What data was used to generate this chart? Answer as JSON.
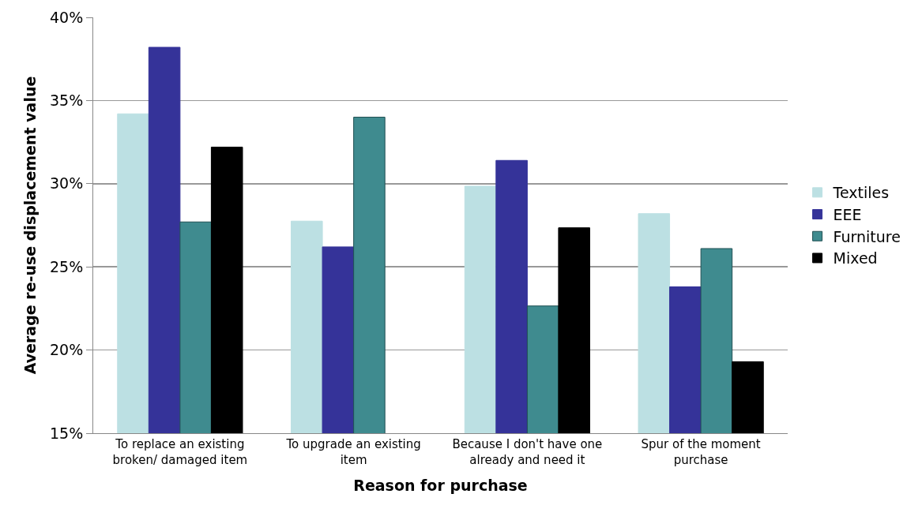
{
  "chart_data": {
    "type": "bar",
    "xlabel": "Reason for purchase",
    "ylabel": "Average re-use displacement value",
    "categories": [
      "To replace an existing broken/ damaged item",
      "To upgrade an existing item",
      "Because I don't have one already and need it",
      "Spur of the moment purchase"
    ],
    "series": [
      {
        "name": "Textiles",
        "color": "#bce0e3",
        "values": [
          34.2,
          27.75,
          29.85,
          28.2
        ]
      },
      {
        "name": "EEE",
        "color": "#353399",
        "values": [
          38.2,
          26.2,
          31.4,
          23.8
        ]
      },
      {
        "name": "Furniture",
        "color": "#3f8b8f",
        "values": [
          27.7,
          34.0,
          22.65,
          26.1
        ]
      },
      {
        "name": "Mixed",
        "color": "#000000",
        "values": [
          32.2,
          null,
          27.35,
          19.3
        ]
      }
    ],
    "ylim": [
      15,
      40
    ],
    "yticks": [
      {
        "value": 15,
        "label": "15%"
      },
      {
        "value": 20,
        "label": "20%"
      },
      {
        "value": 25,
        "label": "25%"
      },
      {
        "value": 30,
        "label": "30%"
      },
      {
        "value": 35,
        "label": "35%"
      },
      {
        "value": 40,
        "label": "40%"
      }
    ],
    "grid": "y",
    "legend": "right"
  }
}
